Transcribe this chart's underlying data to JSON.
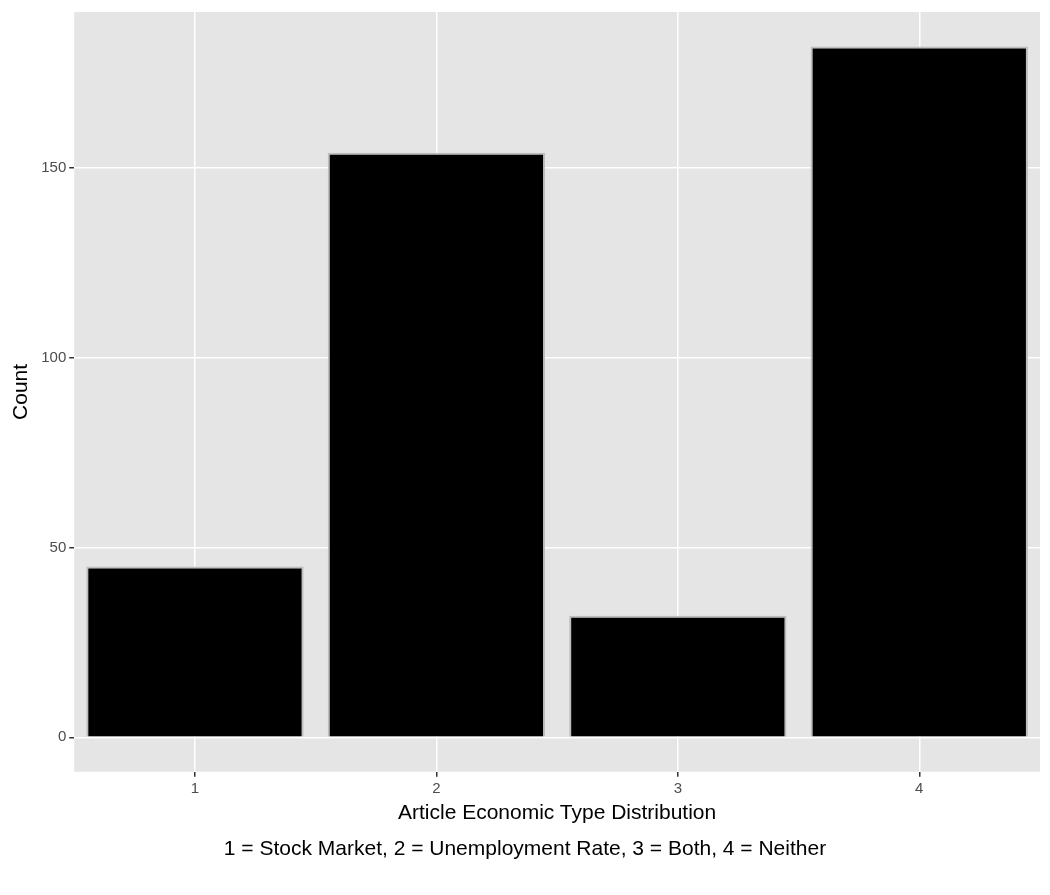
{
  "chart_data": {
    "type": "bar",
    "categories": [
      "1",
      "2",
      "3",
      "4"
    ],
    "values": [
      45,
      154,
      32,
      182
    ],
    "color": "#000000",
    "xlabel": "Article Economic Type Distribution",
    "ylabel": "Count",
    "ylim": [
      -9.1,
      191.1
    ],
    "yticks": [
      0,
      50,
      100,
      150
    ],
    "grid": true,
    "legend": false,
    "annotations": [
      "1 = Stock Market, 2 = Unemployment Rate, 3 = Both, 4 = Neither"
    ]
  }
}
